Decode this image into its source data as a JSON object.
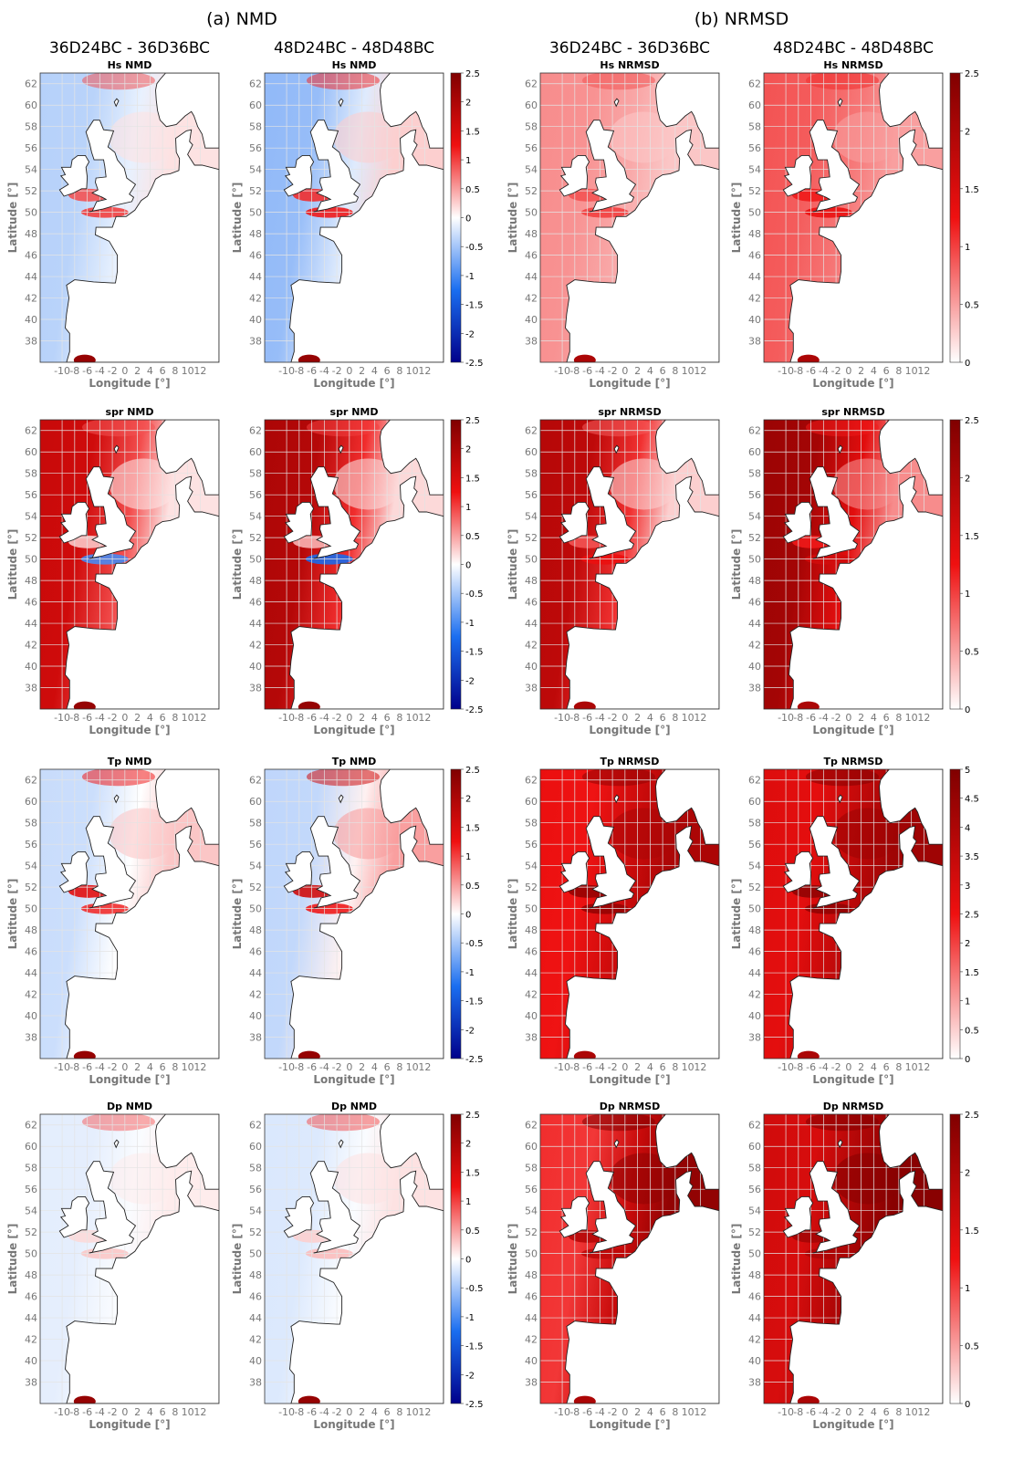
{
  "groups": [
    {
      "label": "(a) NMD",
      "center_col": 0.5
    },
    {
      "label": "(b) NRMSD",
      "center_col": 2.5
    }
  ],
  "columns": [
    "36D24BC - 36D36BC",
    "48D24BC - 48D48BC",
    "36D24BC - 36D36BC",
    "48D24BC - 48D48BC"
  ],
  "chart_data": {
    "type": "heatmap",
    "x_axis": {
      "label": "Longitude [°]",
      "ticks": [
        -10,
        -8,
        -6,
        -4,
        -2,
        0,
        2,
        4,
        6,
        8,
        10,
        12
      ],
      "tick_labels": [
        "-10",
        "-8",
        "-6",
        "-4",
        "-2",
        "0",
        "2",
        "4",
        "6",
        "8",
        "10",
        "12"
      ],
      "range": [
        -13.5,
        15
      ]
    },
    "y_axis": {
      "label": "Latitude [°]",
      "ticks": [
        38,
        40,
        42,
        44,
        46,
        48,
        50,
        52,
        54,
        56,
        58,
        60,
        62
      ],
      "range": [
        36,
        63
      ]
    },
    "grid": true,
    "colorbar_ticks": {
      "nmd": [
        "2.5",
        "2",
        "1.5",
        "1",
        "0.5",
        "0",
        "-0.5",
        "-1",
        "-1.5",
        "-2",
        "-2.5"
      ],
      "nrmsd": [
        "2.5",
        "2",
        "1.5",
        "1",
        "0.5",
        "0"
      ],
      "nrmsd_tp": [
        "5",
        "4.5",
        "4",
        "3.5",
        "3",
        "2.5",
        "2",
        "1.5",
        "1",
        "0.5",
        "0"
      ]
    },
    "colormaps": {
      "diverging": [
        "#00008b",
        "#1a6ef0",
        "#ffffff",
        "#ef1010",
        "#800000"
      ],
      "sequential": [
        "#ffffff",
        "#ef1010",
        "#800000"
      ]
    },
    "panels": [
      {
        "title": "Hs NMD",
        "row": 0,
        "col": 0,
        "metric": "nmd",
        "colorbar": "nmd",
        "cbar_range": [
          -2.5,
          2.5
        ],
        "show_colorbar": false,
        "level_atlantic": -0.4,
        "level_north_sea": 0.15,
        "level_channel": 1.0,
        "level_irish": 0.9
      },
      {
        "title": "Hs NMD",
        "row": 0,
        "col": 1,
        "metric": "nmd",
        "colorbar": "nmd",
        "cbar_range": [
          -2.5,
          2.5
        ],
        "show_colorbar": true,
        "level_atlantic": -0.6,
        "level_north_sea": 0.25,
        "level_channel": 1.2,
        "level_irish": 1.1
      },
      {
        "title": "Hs NRMSD",
        "row": 0,
        "col": 2,
        "metric": "nrmsd",
        "colorbar": "nrmsd",
        "cbar_range": [
          0,
          2.5
        ],
        "show_colorbar": false,
        "level_atlantic": 0.6,
        "level_north_sea": 0.3,
        "level_channel": 1.0,
        "level_irish": 0.9
      },
      {
        "title": "Hs NRMSD",
        "row": 0,
        "col": 3,
        "metric": "nrmsd",
        "colorbar": "nrmsd",
        "cbar_range": [
          0,
          2.5
        ],
        "show_colorbar": true,
        "level_atlantic": 0.9,
        "level_north_sea": 0.5,
        "level_channel": 1.3,
        "level_irish": 1.2
      },
      {
        "title": "spr NMD",
        "row": 1,
        "col": 0,
        "metric": "nmd",
        "colorbar": "nmd",
        "cbar_range": [
          -2.5,
          2.5
        ],
        "show_colorbar": false,
        "level_atlantic": 1.7,
        "level_north_sea": 0.15,
        "level_channel": -1.0,
        "level_irish": 0.3
      },
      {
        "title": "spr NMD",
        "row": 1,
        "col": 1,
        "metric": "nmd",
        "colorbar": "nmd",
        "cbar_range": [
          -2.5,
          2.5
        ],
        "show_colorbar": true,
        "level_atlantic": 2.0,
        "level_north_sea": 0.2,
        "level_channel": -1.3,
        "level_irish": 0.4
      },
      {
        "title": "spr NRMSD",
        "row": 1,
        "col": 2,
        "metric": "nrmsd",
        "colorbar": "nrmsd",
        "cbar_range": [
          0,
          2.5
        ],
        "show_colorbar": false,
        "level_atlantic": 1.9,
        "level_north_sea": 0.25,
        "level_channel": 1.3,
        "level_irish": 0.9
      },
      {
        "title": "spr NRMSD",
        "row": 1,
        "col": 3,
        "metric": "nrmsd",
        "colorbar": "nrmsd",
        "cbar_range": [
          0,
          2.5
        ],
        "show_colorbar": true,
        "level_atlantic": 2.2,
        "level_north_sea": 0.6,
        "level_channel": 1.6,
        "level_irish": 1.2
      },
      {
        "title": "Tp NMD",
        "row": 2,
        "col": 0,
        "metric": "nmd",
        "colorbar": "nmd",
        "cbar_range": [
          -2.5,
          2.5
        ],
        "show_colorbar": false,
        "level_atlantic": -0.3,
        "level_north_sea": 0.3,
        "level_channel": 1.1,
        "level_irish": 1.4
      },
      {
        "title": "Tp NMD",
        "row": 2,
        "col": 1,
        "metric": "nmd",
        "colorbar": "nmd",
        "cbar_range": [
          -2.5,
          2.5
        ],
        "show_colorbar": true,
        "level_atlantic": -0.35,
        "level_north_sea": 0.5,
        "level_channel": 1.2,
        "level_irish": 1.6
      },
      {
        "title": "Tp NRMSD",
        "row": 2,
        "col": 2,
        "metric": "nrmsd",
        "colorbar": "nrmsd_tp",
        "cbar_range": [
          0,
          5
        ],
        "show_colorbar": false,
        "level_atlantic": 2.6,
        "level_north_sea": 4.0,
        "level_channel": 4.5,
        "level_irish": 4.5
      },
      {
        "title": "Tp NRMSD",
        "row": 2,
        "col": 3,
        "metric": "nrmsd",
        "colorbar": "nrmsd_tp",
        "cbar_range": [
          0,
          5
        ],
        "show_colorbar": true,
        "level_atlantic": 2.9,
        "level_north_sea": 4.3,
        "level_channel": 4.6,
        "level_irish": 4.6
      },
      {
        "title": "Dp NMD",
        "row": 3,
        "col": 0,
        "metric": "nmd",
        "colorbar": "nmd",
        "cbar_range": [
          -2.5,
          2.5
        ],
        "show_colorbar": false,
        "level_atlantic": -0.15,
        "level_north_sea": 0.1,
        "level_channel": 0.3,
        "level_irish": 0.2
      },
      {
        "title": "Dp NMD",
        "row": 3,
        "col": 1,
        "metric": "nmd",
        "colorbar": "nmd",
        "cbar_range": [
          -2.5,
          2.5
        ],
        "show_colorbar": true,
        "level_atlantic": -0.2,
        "level_north_sea": 0.15,
        "level_channel": 0.35,
        "level_irish": 0.25
      },
      {
        "title": "Dp NRMSD",
        "row": 3,
        "col": 2,
        "metric": "nrmsd",
        "colorbar": "nrmsd",
        "cbar_range": [
          0,
          2.5
        ],
        "show_colorbar": false,
        "level_atlantic": 1.1,
        "level_north_sea": 2.3,
        "level_channel": 1.8,
        "level_irish": 1.9
      },
      {
        "title": "Dp NRMSD",
        "row": 3,
        "col": 3,
        "metric": "nrmsd",
        "colorbar": "nrmsd",
        "cbar_range": [
          0,
          2.5
        ],
        "show_colorbar": true,
        "level_atlantic": 1.6,
        "level_north_sea": 2.4,
        "level_channel": 2.0,
        "level_irish": 2.1
      }
    ]
  }
}
